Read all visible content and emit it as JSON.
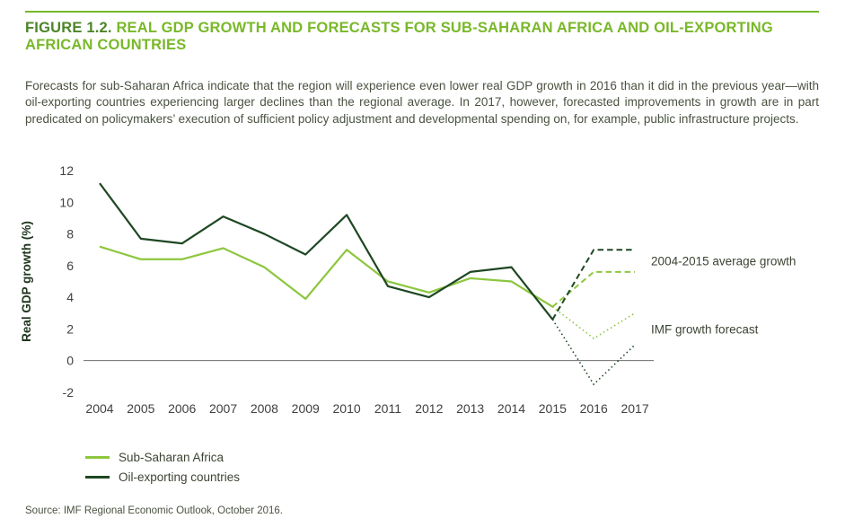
{
  "figure": {
    "label": "FIGURE 1.2.",
    "title": "REAL GDP GROWTH AND FORECASTS FOR SUB-SAHARAN AFRICA AND OIL-EXPORTING AFRICAN COUNTRIES",
    "description": "Forecasts for sub-Saharan Africa indicate that the region will experience even lower real GDP growth in 2016 than it did in the previous year—with oil-exporting countries experiencing larger declines than the regional average. In 2017, however, forecasted improvements in growth are in part predicated on policymakers’ execution of sufficient policy adjustment and developmental spending on, for example, public infrastructure projects.",
    "source": "Source: IMF Regional Economic Outlook, October 2016."
  },
  "chart_data": {
    "type": "line",
    "title": "",
    "xlabel": "",
    "ylabel": "Real GDP growth (%)",
    "ylim": [
      -2,
      12
    ],
    "yticks": [
      12,
      10,
      8,
      6,
      4,
      2,
      0,
      -2
    ],
    "grid": false,
    "legend_position": "bottom-left",
    "categories": [
      2004,
      2005,
      2006,
      2007,
      2008,
      2009,
      2010,
      2011,
      2012,
      2013,
      2014,
      2015,
      2016,
      2017
    ],
    "series": [
      {
        "name": "Sub-Saharan Africa",
        "color": "#8cc63e",
        "historical_years": [
          2004,
          2005,
          2006,
          2007,
          2008,
          2009,
          2010,
          2011,
          2012,
          2013,
          2014,
          2015
        ],
        "values_historical": [
          7.2,
          6.4,
          6.4,
          7.1,
          5.9,
          3.9,
          7.0,
          5.0,
          4.3,
          5.2,
          5.0,
          3.4
        ],
        "forecast": {
          "years": [
            2015,
            2016,
            2017
          ],
          "values": [
            3.4,
            1.4,
            3.0
          ],
          "style": "dotted"
        },
        "average_2004_2015": {
          "years": [
            2015,
            2016,
            2017
          ],
          "values": [
            3.4,
            5.6,
            5.6
          ],
          "style": "dashed"
        }
      },
      {
        "name": "Oil-exporting countries",
        "color": "#1e4722",
        "historical_years": [
          2004,
          2005,
          2006,
          2007,
          2008,
          2009,
          2010,
          2011,
          2012,
          2013,
          2014,
          2015
        ],
        "values_historical": [
          11.2,
          7.7,
          7.4,
          9.1,
          8.0,
          6.7,
          9.2,
          4.7,
          4.0,
          5.6,
          5.9,
          2.6
        ],
        "forecast": {
          "years": [
            2015,
            2016,
            2017
          ],
          "values": [
            2.6,
            -1.5,
            1.0
          ],
          "style": "dotted"
        },
        "average_2004_2015": {
          "years": [
            2015,
            2016,
            2017
          ],
          "values": [
            2.6,
            7.0,
            7.0
          ],
          "style": "dashed"
        }
      }
    ],
    "annotations": [
      {
        "text": "2004-2015 average growth",
        "y": 6.3
      },
      {
        "text": "IMF growth forecast",
        "y": 2.0
      }
    ],
    "legend": [
      {
        "label": "Sub-Saharan Africa",
        "color": "#8cc63e"
      },
      {
        "label": "Oil-exporting countries",
        "color": "#1e4722"
      }
    ]
  },
  "colors": {
    "figure_label": "#4c8527",
    "figure_title": "#79b829",
    "body_text": "#4a5240",
    "axis_text": "#414042",
    "zero_line": "#6d6e71",
    "light_green": "#8cc63e",
    "dark_green": "#1e4722",
    "top_rule": "#76b82a"
  }
}
